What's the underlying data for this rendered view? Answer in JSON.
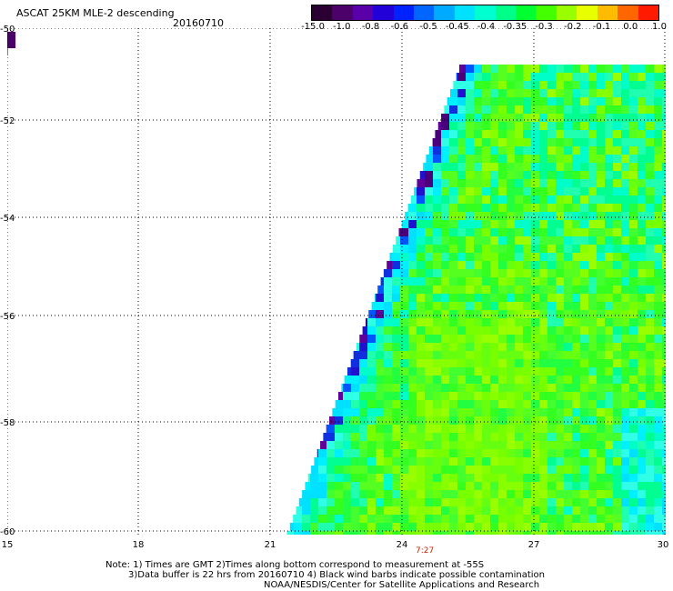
{
  "header": {
    "title": "ASCAT 25KM MLE-2 descending",
    "date": "20160710"
  },
  "colorbar": {
    "colors": [
      "#2a0033",
      "#4b006a",
      "#5a00a8",
      "#2200d8",
      "#0022ff",
      "#0066ff",
      "#00aaff",
      "#00e0ff",
      "#00ffd0",
      "#00ff88",
      "#00ff30",
      "#44ff00",
      "#99ff00",
      "#e8ff00",
      "#ffbb00",
      "#ff6600",
      "#ff1a00"
    ],
    "tick_labels": [
      "-15.0",
      "-1.0",
      "-0.8",
      "-0.6",
      "-0.5",
      "-0.45",
      "-0.4",
      "-0.35",
      "-0.3",
      "-0.2",
      "-0.1",
      "0.0",
      "1.0"
    ]
  },
  "map": {
    "y_ticks": [
      "-50",
      "-52",
      "-54",
      "-56",
      "-58",
      "-60"
    ],
    "x_ticks": [
      "15",
      "18",
      "21",
      "24",
      "27",
      "30"
    ],
    "time_label": "7:27"
  },
  "notes": {
    "line1": "Note: 1) Times are GMT 2)Times along bottom correspond to measurement at -55S",
    "line2": "3)Data buffer is 22 hrs from 20160710 4) Black wind barbs indicate possible contamination",
    "line3": "NOAA/NESDIS/Center for Satellite Applications and Research"
  }
}
